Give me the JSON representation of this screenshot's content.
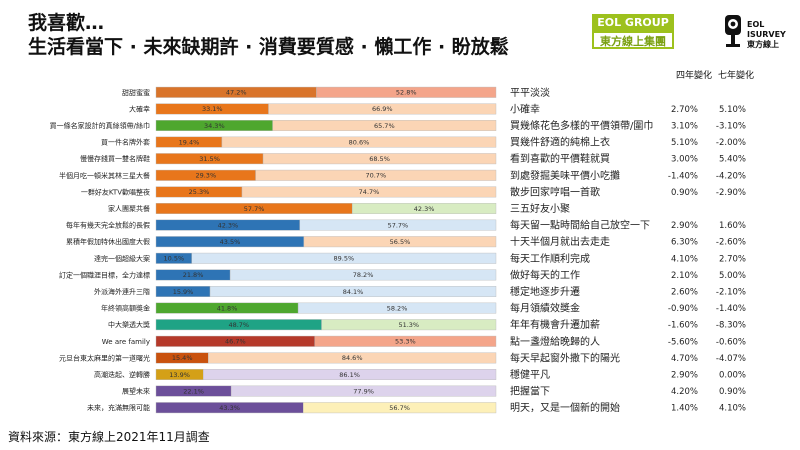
{
  "title": {
    "line1": "我喜歡…",
    "line2": "生活看當下 · 未來缺期許 · 消費要質感 · 懶工作 · 盼放鬆"
  },
  "logos": {
    "eol_group_top": "EOL GROUP",
    "eol_group_bottom": "東方線上集團",
    "survey_line1": "EOL",
    "survey_line2": "ISURVEY",
    "survey_line3": "東方線上"
  },
  "headers": {
    "four_year": "四年變化",
    "seven_year": "七年變化"
  },
  "source": "資料來源：東方線上2021年11月調查",
  "colors": {
    "orange": "#e8761b",
    "peach": "#fbd5b5",
    "salmon": "#f4a58a",
    "dark_orange": "#c9520e",
    "green": "#4ea72e",
    "light_green": "#d8ecc2",
    "blue": "#2e74b5",
    "light_blue": "#d6e6f5",
    "gold": "#d4a017",
    "purple": "#6c4f9a",
    "light_purple": "#ddd3ec",
    "light_yellow": "#fdf0b8",
    "crimson": "#b5392a",
    "teal": "#1fa385"
  },
  "chart_data": {
    "type": "bar",
    "stacked": true,
    "orientation": "horizontal",
    "xlim": [
      0,
      100
    ],
    "unit": "%",
    "rows": [
      {
        "left": "甜甜蜜蜜",
        "right": "平平淡淡",
        "a": 47.2,
        "b": 52.8,
        "chg4": "",
        "chg7": "",
        "ca": "#d9742a",
        "cb": "#f4a58a"
      },
      {
        "left": "大確幸",
        "right": "小確幸",
        "a": 33.1,
        "b": 66.9,
        "chg4": "2.70%",
        "chg7": "5.10%",
        "ca": "#e8761b",
        "cb": "#fbd5b5"
      },
      {
        "left": "買一條名家設計的真絲領帶/絲巾",
        "right": "買幾條花色多樣的平價領帶/圍巾",
        "a": 34.3,
        "b": 65.7,
        "chg4": "3.10%",
        "chg7": "-3.10%",
        "ca": "#4ea72e",
        "cb": "#fbd5b5"
      },
      {
        "left": "買一件名牌外套",
        "right": "買幾件舒適的純棉上衣",
        "a": 19.4,
        "b": 80.6,
        "chg4": "5.10%",
        "chg7": "-2.00%",
        "ca": "#e8761b",
        "cb": "#fbd5b5"
      },
      {
        "left": "慢慢存錢買一雙名牌鞋",
        "right": "看到喜歡的平價鞋就買",
        "a": 31.5,
        "b": 68.5,
        "chg4": "3.00%",
        "chg7": "5.40%",
        "ca": "#e8761b",
        "cb": "#fbd5b5"
      },
      {
        "left": "半個月吃一頓米其林三星大餐",
        "right": "到處發掘美味平價小吃攤",
        "a": 29.3,
        "b": 70.7,
        "chg4": "-1.40%",
        "chg7": "-4.20%",
        "ca": "#e8761b",
        "cb": "#fbd5b5"
      },
      {
        "left": "一群好友KTV歡唱整夜",
        "right": "散步回家哼唱一首歌",
        "a": 25.3,
        "b": 74.7,
        "chg4": "0.90%",
        "chg7": "-2.90%",
        "ca": "#e8761b",
        "cb": "#fbd5b5"
      },
      {
        "left": "家人團聚共餐",
        "right": "三五好友小聚",
        "a": 57.7,
        "b": 42.3,
        "chg4": "",
        "chg7": "",
        "ca": "#e8761b",
        "cb": "#d8ecc2"
      },
      {
        "left": "每年有幾天完全放鬆的長假",
        "right": "每天留一點時間給自己放空一下",
        "a": 42.3,
        "b": 57.7,
        "chg4": "2.90%",
        "chg7": "1.60%",
        "ca": "#2e74b5",
        "cb": "#d6e6f5"
      },
      {
        "left": "累積年假加特休出國度大假",
        "right": "十天半個月就出去走走",
        "a": 43.5,
        "b": 56.5,
        "chg4": "6.30%",
        "chg7": "-2.60%",
        "ca": "#2e74b5",
        "cb": "#fbd5b5"
      },
      {
        "left": "達完一個超級大案",
        "right": "每天工作順利完成",
        "a": 10.5,
        "b": 89.5,
        "chg4": "4.10%",
        "chg7": "2.70%",
        "ca": "#2e74b5",
        "cb": "#d6e6f5"
      },
      {
        "left": "訂定一個職涯目標，全力達標",
        "right": "做好每天的工作",
        "a": 21.8,
        "b": 78.2,
        "chg4": "2.10%",
        "chg7": "5.00%",
        "ca": "#2e74b5",
        "cb": "#d6e6f5"
      },
      {
        "left": "外派海外連升三階",
        "right": "穩定地逐步升遷",
        "a": 15.9,
        "b": 84.1,
        "chg4": "2.60%",
        "chg7": "-2.10%",
        "ca": "#2e74b5",
        "cb": "#d6e6f5"
      },
      {
        "left": "年終領高額獎金",
        "right": "每月領績效獎金",
        "a": 41.8,
        "b": 58.2,
        "chg4": "-0.90%",
        "chg7": "-1.40%",
        "ca": "#4ea72e",
        "cb": "#d6e6f5"
      },
      {
        "left": "中大樂透大獎",
        "right": "年年有機會升遷加薪",
        "a": 48.7,
        "b": 51.3,
        "chg4": "-1.60%",
        "chg7": "-8.30%",
        "ca": "#1fa385",
        "cb": "#d8ecc2"
      },
      {
        "left": "We are family",
        "right": "點一盞燈給晚歸的人",
        "a": 46.7,
        "b": 53.3,
        "chg4": "-5.60%",
        "chg7": "-0.60%",
        "ca": "#b5392a",
        "cb": "#f4a58a"
      },
      {
        "left": "元旦台東太麻里的第一道曙光",
        "right": "每天早起窗外撒下的陽光",
        "a": 15.4,
        "b": 84.6,
        "chg4": "4.70%",
        "chg7": "-4.07%",
        "ca": "#c9520e",
        "cb": "#fbd5b5"
      },
      {
        "left": "高潮迭起、逆轉勝",
        "right": "穩健平凡",
        "a": 13.9,
        "b": 86.1,
        "chg4": "2.90%",
        "chg7": "0.00%",
        "ca": "#d4a017",
        "cb": "#ddd3ec"
      },
      {
        "left": "展望未來",
        "right": "把握當下",
        "a": 22.1,
        "b": 77.9,
        "chg4": "4.20%",
        "chg7": "0.90%",
        "ca": "#6c4f9a",
        "cb": "#ddd3ec"
      },
      {
        "left": "未來，充滿無限可能",
        "right": "明天，又是一個新的開始",
        "a": 43.3,
        "b": 56.7,
        "chg4": "1.40%",
        "chg7": "4.10%",
        "ca": "#6c4f9a",
        "cb": "#fdf0b8"
      }
    ]
  }
}
